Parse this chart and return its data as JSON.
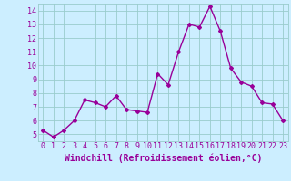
{
  "x": [
    0,
    1,
    2,
    3,
    4,
    5,
    6,
    7,
    8,
    9,
    10,
    11,
    12,
    13,
    14,
    15,
    16,
    17,
    18,
    19,
    20,
    21,
    22,
    23
  ],
  "y": [
    5.3,
    4.8,
    5.3,
    6.0,
    7.5,
    7.3,
    7.0,
    7.8,
    6.8,
    6.7,
    6.6,
    9.4,
    8.6,
    11.0,
    13.0,
    12.8,
    14.3,
    12.5,
    9.8,
    8.8,
    8.5,
    7.3,
    7.2,
    6.0
  ],
  "line_color": "#990099",
  "marker": "D",
  "marker_size": 2.0,
  "bg_color": "#cceeff",
  "grid_color": "#99cccc",
  "xlabel": "Windchill (Refroidissement éolien,°C)",
  "xlabel_color": "#990099",
  "ylim": [
    4.5,
    14.5
  ],
  "yticks": [
    5,
    6,
    7,
    8,
    9,
    10,
    11,
    12,
    13,
    14
  ],
  "xticks": [
    0,
    1,
    2,
    3,
    4,
    5,
    6,
    7,
    8,
    9,
    10,
    11,
    12,
    13,
    14,
    15,
    16,
    17,
    18,
    19,
    20,
    21,
    22,
    23
  ],
  "tick_color": "#990099",
  "tick_fontsize": 6.0,
  "xlabel_fontsize": 7.0,
  "line_width": 1.0
}
